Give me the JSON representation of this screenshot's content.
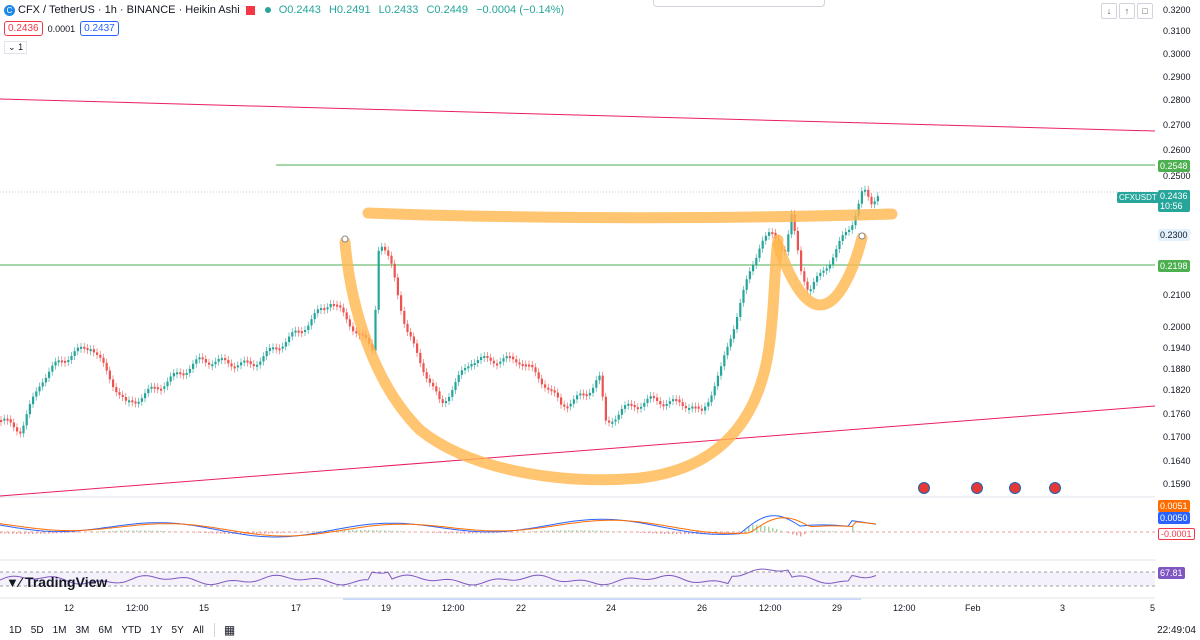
{
  "header": {
    "symbol_line": "CFX / TetherUS · 1h · BINANCE · Heikin Ashi",
    "open": "O0.2443",
    "high": "H0.2491",
    "low": "L0.2433",
    "close": "C0.2449",
    "change": "−0.0004 (−0.14%)",
    "bid": "0.2436",
    "spread": "0.0001",
    "ask": "0.2437",
    "indicator_count": "1"
  },
  "price_axis": [
    "0.3200",
    "0.3100",
    "0.3000",
    "0.2900",
    "0.2800",
    "0.2700",
    "0.2600",
    "0.2500",
    "0.2300",
    "0.2100",
    "0.2000",
    "0.1940",
    "0.1880",
    "0.1820",
    "0.1760",
    "0.1700",
    "0.1640",
    "0.1590"
  ],
  "price_tags": {
    "resistance": "0.2548",
    "support": "0.2198",
    "current_label": "CFXUSDT",
    "current_price": "0.2436",
    "countdown": "10:56",
    "level_2300": "0.2300"
  },
  "macd_tags": [
    "0.0051",
    "0.0050",
    "-0.0001"
  ],
  "rsi_tag": "67.81",
  "time_axis": [
    "12",
    "12:00",
    "15",
    "17",
    "19",
    "12:00",
    "22",
    "24",
    "26",
    "12:00",
    "29",
    "12:00",
    "Feb",
    "3",
    "5"
  ],
  "branding": "TradingView",
  "bottom_bar": {
    "ranges": [
      "1D",
      "5D",
      "1M",
      "3M",
      "6M",
      "YTD",
      "1Y",
      "5Y",
      "All"
    ],
    "clock": "22:49:04"
  },
  "colors": {
    "up": "#26a69a",
    "down": "#ef5350",
    "green_line": "#4caf50",
    "trend_line": "#e91e63",
    "annotation": "#ffb74d",
    "macd": "#2962ff",
    "signal": "#ff6d00",
    "rsi": "#7e57c2"
  }
}
